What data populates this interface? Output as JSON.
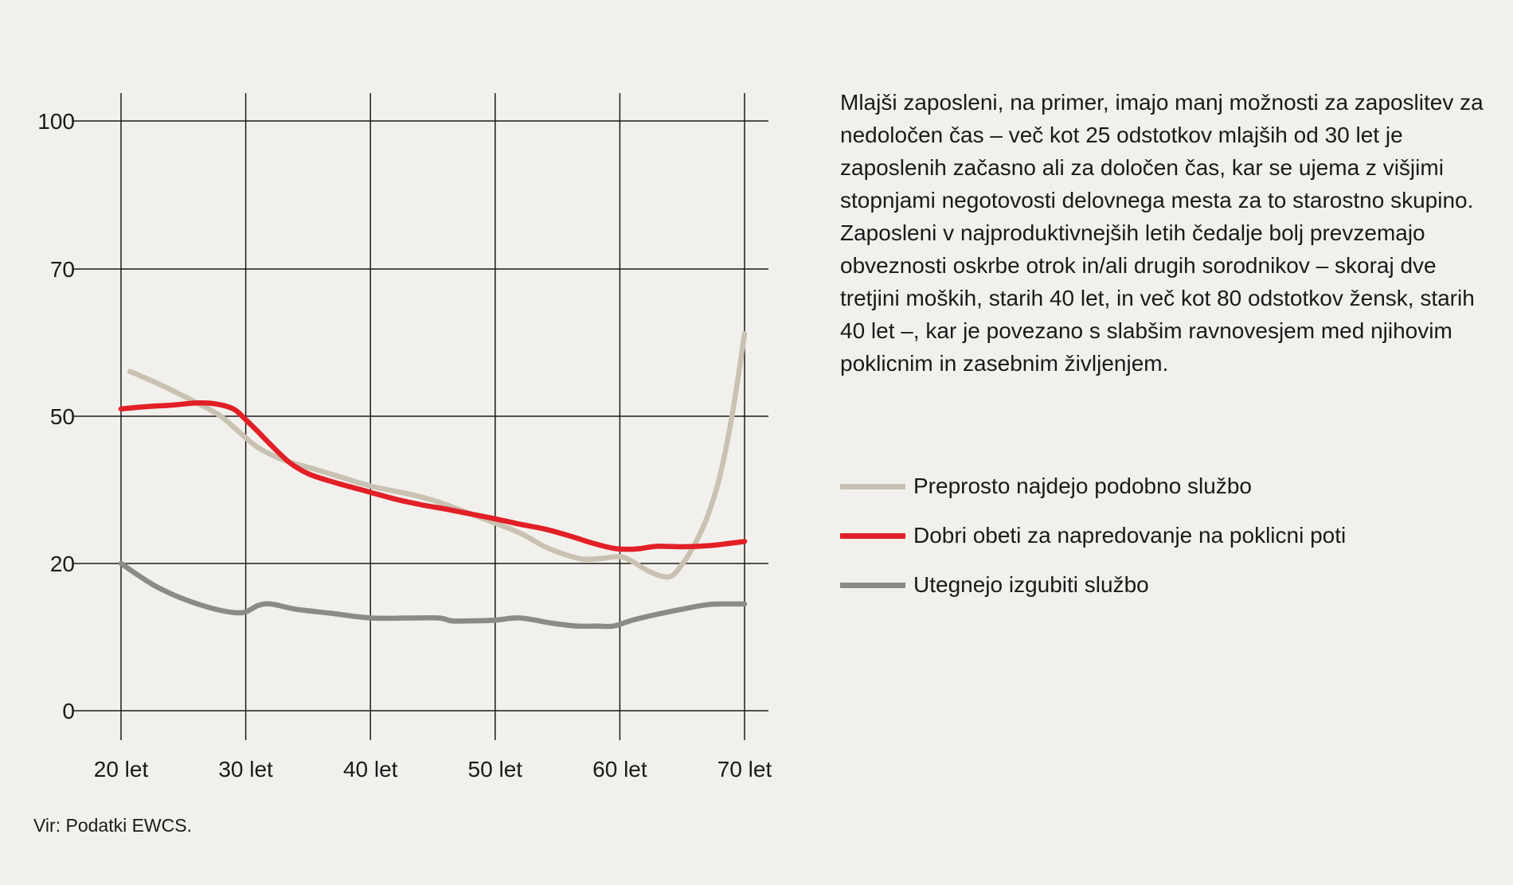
{
  "description": "Mlajši zaposleni, na primer, imajo manj možnosti za zaposlitev za nedoločen čas – več kot 25 odstotkov mlajših od 30 let je zaposlenih začasno ali za določen čas, kar se ujema z višjimi stopnjami negotovosti delovnega mesta za to starostno skupino. Zaposleni v najproduktivnejših letih čedalje bolj prevzemajo obveznosti oskrbe otrok in/ali drugih sorodnikov – skoraj dve tretjini moških, starih 40 let, in več kot 80 odstotkov žensk, starih 40 let –, kar je povezano s slabšim ravnovesjem med njihovim poklicnim in zasebnim življenjem.",
  "source": "Vir: Podatki EWCS.",
  "chart_data": {
    "type": "line",
    "x_ticks": [
      {
        "value": 20,
        "label": "20 let"
      },
      {
        "value": 30,
        "label": "30 let"
      },
      {
        "value": 40,
        "label": "40 let"
      },
      {
        "value": 50,
        "label": "50 let"
      },
      {
        "value": 60,
        "label": "60 let"
      },
      {
        "value": 70,
        "label": "70 let"
      }
    ],
    "y_ticks": [
      {
        "value": 0,
        "label": "0"
      },
      {
        "value": 20,
        "label": "20"
      },
      {
        "value": 50,
        "label": "50"
      },
      {
        "value": 70,
        "label": "70"
      },
      {
        "value": 100,
        "label": "100"
      }
    ],
    "y_scale_note": "piecewise: ticks 0, 20, 50, 70, 100 shown at positions 0, 3, 5, 7, 9 of a 9-unit axis",
    "xlim": [
      20,
      70
    ],
    "grid": true,
    "legend_position": "right",
    "series": [
      {
        "name": "Preprosto najdejo podobno službo",
        "color": "#c9c1b1",
        "x": [
          20.7,
          23,
          26,
          28,
          29.5,
          31,
          33,
          35,
          37,
          40,
          43,
          45,
          47,
          50,
          52,
          54,
          55.5,
          57,
          58.5,
          60,
          61,
          62.5,
          64,
          65,
          66,
          67,
          68,
          69,
          70
        ],
        "y": [
          56.1,
          54.4,
          51.9,
          50,
          46.7,
          43.6,
          41.1,
          39.6,
          38.1,
          35.8,
          34.2,
          32.9,
          31.1,
          28.2,
          26.2,
          23.4,
          21.9,
          20.9,
          21,
          21.4,
          20.4,
          18.8,
          18.2,
          19.9,
          23.9,
          29.4,
          37.6,
          50.1,
          61.2
        ]
      },
      {
        "name": "Dobri obeti za napredovanje na poklicni poti",
        "color": "#e21f26",
        "x": [
          20,
          22,
          24,
          26,
          27.5,
          29,
          30,
          31,
          32,
          33.5,
          35,
          37,
          39,
          40,
          42,
          44,
          46,
          48,
          50,
          52,
          54,
          56,
          58,
          59.5,
          60.5,
          61.5,
          63,
          65,
          67,
          68.5,
          70
        ],
        "y": [
          51,
          51.3,
          51.5,
          51.8,
          51.7,
          51,
          49.3,
          46.8,
          44.2,
          40.6,
          38.3,
          36.6,
          35.2,
          34.5,
          33.1,
          32,
          31.1,
          30.1,
          29.1,
          28,
          27,
          25.6,
          24,
          23.1,
          22.9,
          23,
          23.5,
          23.4,
          23.6,
          24,
          24.5
        ]
      },
      {
        "name": "Utegnejo izgubiti službo",
        "color": "#8c8a87",
        "x": [
          20,
          23,
          26.5,
          29.5,
          31,
          32,
          34,
          37,
          40,
          43,
          45.5,
          46.5,
          48,
          50,
          52,
          54.5,
          56.5,
          58,
          59.5,
          61,
          63,
          65,
          67,
          68.5,
          70
        ],
        "y": [
          20,
          16.7,
          14.3,
          13.3,
          14.3,
          14.5,
          13.8,
          13.2,
          12.6,
          12.6,
          12.6,
          12.2,
          12.2,
          12.3,
          12.6,
          11.9,
          11.5,
          11.5,
          11.5,
          12.3,
          13.1,
          13.8,
          14.4,
          14.5,
          14.5
        ]
      }
    ]
  }
}
